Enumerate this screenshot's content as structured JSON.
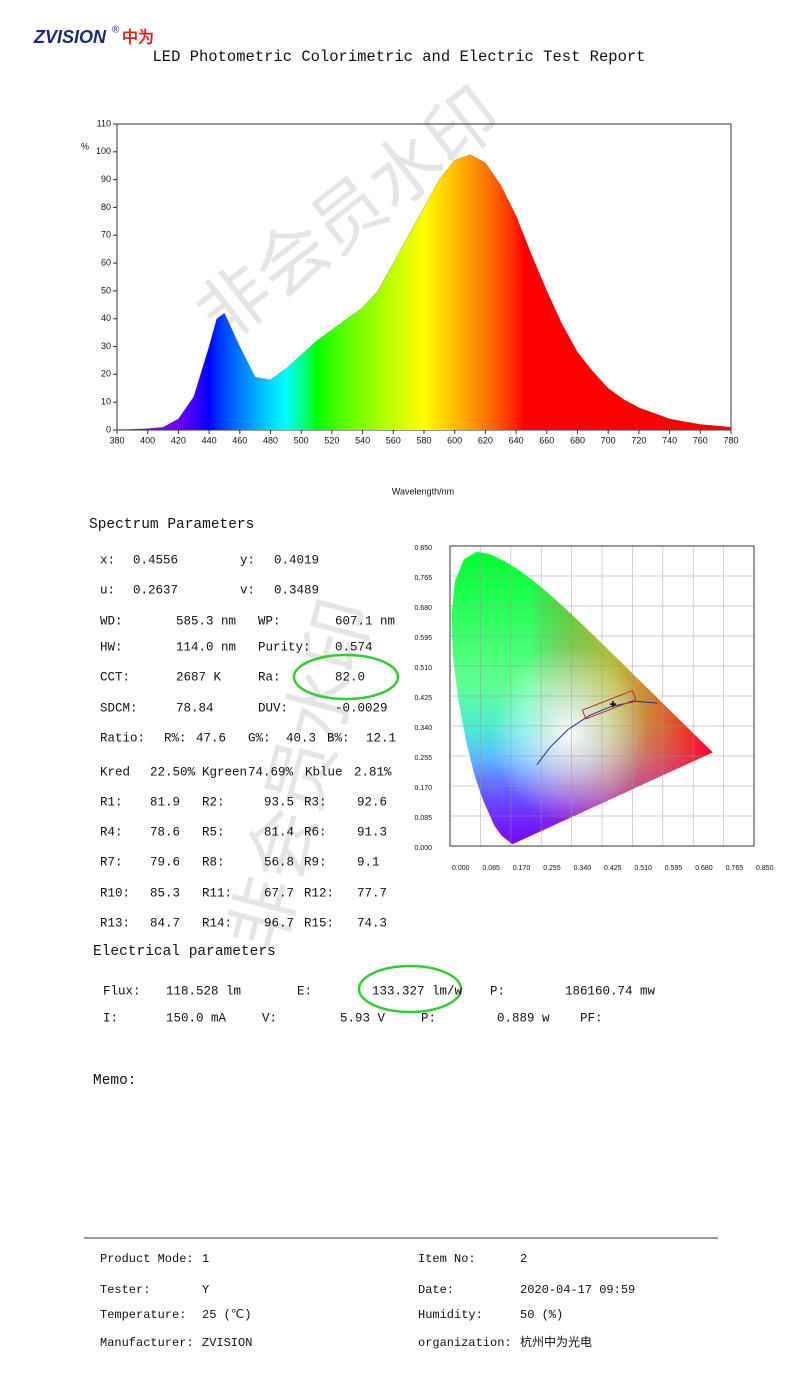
{
  "header": {
    "logo": "ZVISION",
    "logo_mark": "®",
    "logo_cn": "中为",
    "title": "LED Photometric Colorimetric and Electric Test Report"
  },
  "watermark": "非会员水印",
  "chart_data": [
    {
      "type": "area",
      "y_label": "%",
      "x_label": "Wavelength/nm",
      "x": [
        380,
        390,
        400,
        410,
        420,
        430,
        440,
        445,
        450,
        455,
        460,
        470,
        480,
        490,
        500,
        510,
        520,
        530,
        540,
        550,
        560,
        570,
        580,
        590,
        600,
        610,
        620,
        630,
        640,
        650,
        660,
        670,
        680,
        690,
        700,
        710,
        720,
        730,
        740,
        750,
        760,
        770,
        780
      ],
      "values": [
        0,
        0.3,
        0.5,
        1,
        4,
        12,
        30,
        40,
        42,
        36,
        30,
        19,
        18,
        22,
        27,
        32,
        36,
        40,
        44,
        50,
        60,
        70,
        80,
        90,
        97,
        99,
        96,
        88,
        77,
        63,
        50,
        38,
        28,
        21,
        15,
        11,
        8,
        6,
        4,
        3,
        2,
        1.5,
        1
      ],
      "xlim": [
        380,
        780
      ],
      "ylim": [
        0,
        110
      ],
      "xticks": [
        380,
        400,
        420,
        440,
        460,
        480,
        500,
        520,
        540,
        560,
        580,
        600,
        620,
        640,
        660,
        680,
        700,
        720,
        740,
        760,
        780
      ],
      "yticks": [
        0,
        10,
        20,
        30,
        40,
        50,
        60,
        70,
        80,
        90,
        100,
        110
      ]
    },
    {
      "type": "cie",
      "xlim": [
        0,
        0.85
      ],
      "ylim": [
        0,
        0.85
      ],
      "xticks": [
        {
          "value": 0,
          "label": "0.000"
        },
        {
          "value": 0.085,
          "label": "0.085"
        },
        {
          "value": 0.17,
          "label": "0.170"
        },
        {
          "value": 0.255,
          "label": "0.255"
        },
        {
          "value": 0.34,
          "label": "0.340"
        },
        {
          "value": 0.425,
          "label": "0.425"
        },
        {
          "value": 0.51,
          "label": "0.510"
        },
        {
          "value": 0.595,
          "label": "0.595"
        },
        {
          "value": 0.68,
          "label": "0.680"
        },
        {
          "value": 0.765,
          "label": "0.765"
        },
        {
          "value": 0.85,
          "label": "0.850"
        }
      ],
      "yticks": [
        {
          "value": 0,
          "label": "0.000"
        },
        {
          "value": 0.085,
          "label": "0.085"
        },
        {
          "value": 0.17,
          "label": "0.170"
        },
        {
          "value": 0.255,
          "label": "0.255"
        },
        {
          "value": 0.34,
          "label": "0.340"
        },
        {
          "value": 0.425,
          "label": "0.425"
        },
        {
          "value": 0.51,
          "label": "0.510"
        },
        {
          "value": 0.595,
          "label": "0.595"
        },
        {
          "value": 0.68,
          "label": "0.680"
        },
        {
          "value": 0.765,
          "label": "0.765"
        },
        {
          "value": 0.85,
          "label": "0.850"
        }
      ]
    }
  ],
  "spectrum_parameters": {
    "title": "Spectrum Parameters",
    "rows": [
      [
        "x:",
        "0.4556",
        "y:",
        "0.4019"
      ],
      [
        "u:",
        "0.2637",
        "v:",
        "0.3489"
      ],
      [
        "WD:",
        "585.3 nm",
        "WP:",
        "607.1 nm"
      ],
      [
        "HW:",
        "114.0 nm",
        "Purity:",
        "0.574"
      ],
      [
        "CCT:",
        "2687 K",
        "Ra:",
        "82.0"
      ],
      [
        "SDCM:",
        "78.84",
        "DUV:",
        "-0.0029"
      ],
      [
        "Ratio:",
        "R%:",
        "47.6",
        "G%:",
        "40.3",
        "B%:",
        "12.1"
      ],
      [
        "Kred",
        "22.50%",
        "Kgreen",
        "74.69%",
        "Kblue",
        "2.81%"
      ],
      [
        "R1:",
        "81.9",
        "R2:",
        "93.5",
        "R3:",
        "92.6"
      ],
      [
        "R4:",
        "78.6",
        "R5:",
        "81.4",
        "R6:",
        "91.3"
      ],
      [
        "R7:",
        "79.6",
        "R8:",
        "56.8",
        "R9:",
        "9.1"
      ],
      [
        "R10:",
        "85.3",
        "R11:",
        "67.7",
        "R12:",
        "77.7"
      ],
      [
        "R13:",
        "84.7",
        "R14:",
        "96.7",
        "R15:",
        "74.3"
      ]
    ]
  },
  "electrical_parameters": {
    "title": "Electrical parameters",
    "rows": [
      [
        "Flux:",
        "118.528 lm",
        "E:",
        "133.327 lm/w",
        "P:",
        "186160.74 mw"
      ],
      [
        "I:",
        "150.0 mA",
        "V:",
        "5.93 V",
        "P:",
        "0.889 w",
        "PF:"
      ]
    ]
  },
  "memo": "Memo:",
  "footer": {
    "rows": [
      [
        "Product Mode:",
        "1",
        "Item No:",
        "2"
      ],
      [
        "Tester:",
        "Y",
        "Date:",
        "2020-04-17 09:59"
      ],
      [
        "Temperature:",
        "25 (℃)",
        "Humidity:",
        "50 (%)"
      ],
      [
        "Manufacturer:",
        "ZVISION",
        "organization:",
        "杭州中为光电"
      ]
    ]
  }
}
